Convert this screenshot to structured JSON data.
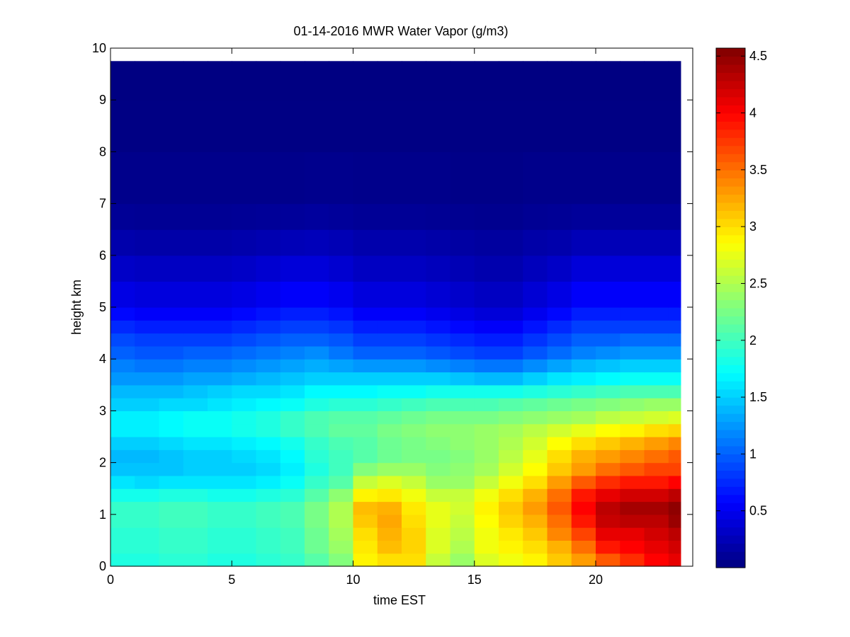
{
  "chart_data": {
    "type": "heatmap",
    "title": "01-14-2016 MWR Water Vapor (g/m3)",
    "xlabel": "time EST",
    "ylabel": "height km",
    "xlim": [
      0,
      24
    ],
    "ylim": [
      0,
      10
    ],
    "x_ticks": [
      0,
      5,
      10,
      15,
      20
    ],
    "y_ticks": [
      0,
      1,
      2,
      3,
      4,
      5,
      6,
      7,
      8,
      9,
      10
    ],
    "colorbar": {
      "colormap": "jet",
      "range": [
        0.0,
        4.57
      ],
      "ticks": [
        0.5,
        1,
        1.5,
        2,
        2.5,
        3,
        3.5,
        4,
        4.5
      ],
      "tick_labels": [
        "0.5",
        "1",
        "1.5",
        "2",
        "2.5",
        "3",
        "3.5",
        "4",
        "4.5"
      ]
    },
    "time_hours": [
      0,
      1,
      2,
      3,
      4,
      5,
      6,
      7,
      8,
      9,
      10,
      11,
      12,
      13,
      14,
      15,
      16,
      17,
      18,
      19,
      20,
      21,
      22,
      23
    ],
    "height_km": [
      0.0,
      0.25,
      0.5,
      0.75,
      1.0,
      1.25,
      1.5,
      1.75,
      2.0,
      2.25,
      2.5,
      2.75,
      3.0,
      3.25,
      3.5,
      3.75,
      4.0,
      4.25,
      4.5,
      4.75,
      5.0,
      5.5,
      6.0,
      6.5,
      7.0,
      8.0,
      9.0
    ],
    "height_top_km": 9.75,
    "values_gm3": [
      [
        1.85,
        1.85,
        1.9,
        1.9,
        1.85,
        1.85,
        1.9,
        1.95,
        2.1,
        2.3,
        2.9,
        3.0,
        3.0,
        2.6,
        2.4,
        2.7,
        2.8,
        2.9,
        3.1,
        3.3,
        3.6,
        3.8,
        4.0,
        4.1
      ],
      [
        1.9,
        1.9,
        1.95,
        1.95,
        1.9,
        1.9,
        1.95,
        2.0,
        2.2,
        2.4,
        2.95,
        3.15,
        3.05,
        2.7,
        2.5,
        2.8,
        2.9,
        3.0,
        3.2,
        3.5,
        3.9,
        4.0,
        4.1,
        4.2
      ],
      [
        1.9,
        1.9,
        1.95,
        1.95,
        1.9,
        1.9,
        1.95,
        2.0,
        2.2,
        2.45,
        3.0,
        3.2,
        3.05,
        2.7,
        2.55,
        2.8,
        2.95,
        3.1,
        3.4,
        3.7,
        4.1,
        4.1,
        4.2,
        4.3
      ],
      [
        1.95,
        1.95,
        2.0,
        2.0,
        1.95,
        1.95,
        2.0,
        2.05,
        2.25,
        2.5,
        3.1,
        3.25,
        3.0,
        2.75,
        2.6,
        2.85,
        3.05,
        3.2,
        3.5,
        3.9,
        4.25,
        4.3,
        4.3,
        4.45
      ],
      [
        1.95,
        1.95,
        2.0,
        2.0,
        1.95,
        1.95,
        2.0,
        2.05,
        2.25,
        2.5,
        3.15,
        3.2,
        2.95,
        2.75,
        2.65,
        2.9,
        3.1,
        3.3,
        3.6,
        4.0,
        4.3,
        4.4,
        4.4,
        4.5
      ],
      [
        1.8,
        1.8,
        1.85,
        1.85,
        1.8,
        1.8,
        1.85,
        1.9,
        2.1,
        2.35,
        2.9,
        2.95,
        2.8,
        2.6,
        2.6,
        2.8,
        3.0,
        3.2,
        3.5,
        3.9,
        4.1,
        4.2,
        4.2,
        4.3
      ],
      [
        1.6,
        1.55,
        1.6,
        1.6,
        1.6,
        1.6,
        1.65,
        1.75,
        1.95,
        2.1,
        2.6,
        2.7,
        2.6,
        2.4,
        2.4,
        2.6,
        2.8,
        3.0,
        3.3,
        3.6,
        3.8,
        3.9,
        3.9,
        4.0
      ],
      [
        1.45,
        1.45,
        1.45,
        1.5,
        1.5,
        1.5,
        1.55,
        1.65,
        1.85,
        2.0,
        2.3,
        2.4,
        2.4,
        2.3,
        2.35,
        2.45,
        2.65,
        2.85,
        3.1,
        3.3,
        3.5,
        3.6,
        3.7,
        3.7
      ],
      [
        1.4,
        1.4,
        1.45,
        1.5,
        1.5,
        1.55,
        1.6,
        1.7,
        1.9,
        2.0,
        2.1,
        2.2,
        2.25,
        2.25,
        2.3,
        2.4,
        2.55,
        2.75,
        3.0,
        3.2,
        3.3,
        3.4,
        3.5,
        3.6
      ],
      [
        1.5,
        1.5,
        1.55,
        1.6,
        1.6,
        1.65,
        1.7,
        1.8,
        1.95,
        2.05,
        2.1,
        2.2,
        2.25,
        2.3,
        2.35,
        2.4,
        2.5,
        2.65,
        2.85,
        3.0,
        3.1,
        3.2,
        3.3,
        3.4
      ],
      [
        1.65,
        1.65,
        1.7,
        1.75,
        1.75,
        1.8,
        1.85,
        1.95,
        2.05,
        2.15,
        2.15,
        2.25,
        2.3,
        2.35,
        2.35,
        2.4,
        2.45,
        2.55,
        2.65,
        2.75,
        2.85,
        2.9,
        3.0,
        3.05
      ],
      [
        1.65,
        1.65,
        1.7,
        1.75,
        1.75,
        1.8,
        1.85,
        1.95,
        2.05,
        2.1,
        2.1,
        2.15,
        2.2,
        2.25,
        2.25,
        2.25,
        2.3,
        2.35,
        2.4,
        2.45,
        2.55,
        2.6,
        2.65,
        2.7
      ],
      [
        1.5,
        1.5,
        1.55,
        1.55,
        1.6,
        1.65,
        1.7,
        1.75,
        1.85,
        1.9,
        1.9,
        1.95,
        2.0,
        2.05,
        2.05,
        2.05,
        2.1,
        2.15,
        2.2,
        2.25,
        2.3,
        2.35,
        2.4,
        2.4
      ],
      [
        1.4,
        1.4,
        1.4,
        1.45,
        1.5,
        1.55,
        1.55,
        1.6,
        1.7,
        1.7,
        1.7,
        1.75,
        1.75,
        1.8,
        1.8,
        1.8,
        1.8,
        1.85,
        1.9,
        1.95,
        2.0,
        2.05,
        2.05,
        2.05
      ],
      [
        1.25,
        1.25,
        1.25,
        1.3,
        1.3,
        1.35,
        1.4,
        1.45,
        1.5,
        1.5,
        1.5,
        1.5,
        1.5,
        1.5,
        1.45,
        1.4,
        1.4,
        1.5,
        1.6,
        1.65,
        1.7,
        1.75,
        1.75,
        1.75
      ],
      [
        1.15,
        1.1,
        1.1,
        1.15,
        1.15,
        1.2,
        1.25,
        1.3,
        1.35,
        1.3,
        1.25,
        1.25,
        1.25,
        1.2,
        1.15,
        1.1,
        1.1,
        1.2,
        1.3,
        1.4,
        1.45,
        1.5,
        1.5,
        1.5
      ],
      [
        1.0,
        0.95,
        0.95,
        1.0,
        1.0,
        1.05,
        1.1,
        1.15,
        1.2,
        1.1,
        1.0,
        1.0,
        1.0,
        0.95,
        0.9,
        0.85,
        0.85,
        0.95,
        1.05,
        1.15,
        1.2,
        1.25,
        1.25,
        1.25
      ],
      [
        0.9,
        0.85,
        0.85,
        0.85,
        0.85,
        0.9,
        0.95,
        1.0,
        1.0,
        0.95,
        0.85,
        0.85,
        0.85,
        0.8,
        0.75,
        0.7,
        0.7,
        0.8,
        0.9,
        1.0,
        1.0,
        1.05,
        1.05,
        1.05
      ],
      [
        0.75,
        0.7,
        0.7,
        0.7,
        0.7,
        0.75,
        0.8,
        0.85,
        0.85,
        0.8,
        0.7,
        0.7,
        0.7,
        0.65,
        0.6,
        0.55,
        0.55,
        0.65,
        0.75,
        0.85,
        0.85,
        0.85,
        0.85,
        0.85
      ],
      [
        0.6,
        0.55,
        0.55,
        0.55,
        0.55,
        0.6,
        0.65,
        0.7,
        0.7,
        0.65,
        0.55,
        0.55,
        0.55,
        0.5,
        0.45,
        0.4,
        0.4,
        0.5,
        0.6,
        0.7,
        0.7,
        0.7,
        0.7,
        0.7
      ],
      [
        0.45,
        0.42,
        0.42,
        0.42,
        0.42,
        0.45,
        0.5,
        0.55,
        0.55,
        0.5,
        0.42,
        0.42,
        0.42,
        0.38,
        0.34,
        0.3,
        0.3,
        0.38,
        0.45,
        0.55,
        0.55,
        0.55,
        0.55,
        0.55
      ],
      [
        0.32,
        0.3,
        0.3,
        0.3,
        0.3,
        0.32,
        0.36,
        0.4,
        0.4,
        0.36,
        0.3,
        0.3,
        0.3,
        0.27,
        0.24,
        0.21,
        0.21,
        0.27,
        0.32,
        0.4,
        0.4,
        0.4,
        0.4,
        0.4
      ],
      [
        0.2,
        0.18,
        0.18,
        0.18,
        0.18,
        0.2,
        0.22,
        0.25,
        0.26,
        0.24,
        0.2,
        0.2,
        0.2,
        0.18,
        0.16,
        0.14,
        0.14,
        0.18,
        0.2,
        0.25,
        0.25,
        0.25,
        0.25,
        0.25
      ],
      [
        0.1,
        0.09,
        0.09,
        0.09,
        0.09,
        0.1,
        0.11,
        0.12,
        0.13,
        0.12,
        0.1,
        0.1,
        0.1,
        0.09,
        0.08,
        0.07,
        0.07,
        0.09,
        0.1,
        0.12,
        0.12,
        0.12,
        0.12,
        0.12
      ],
      [
        0.05,
        0.05,
        0.05,
        0.05,
        0.05,
        0.05,
        0.05,
        0.05,
        0.06,
        0.06,
        0.05,
        0.05,
        0.05,
        0.05,
        0.04,
        0.04,
        0.04,
        0.05,
        0.05,
        0.05,
        0.05,
        0.05,
        0.05,
        0.05
      ],
      [
        0.02,
        0.02,
        0.02,
        0.02,
        0.02,
        0.02,
        0.02,
        0.02,
        0.02,
        0.02,
        0.02,
        0.02,
        0.02,
        0.02,
        0.02,
        0.02,
        0.02,
        0.02,
        0.02,
        0.02,
        0.02,
        0.02,
        0.02,
        0.02
      ],
      [
        0.01,
        0.01,
        0.01,
        0.01,
        0.01,
        0.01,
        0.01,
        0.01,
        0.01,
        0.01,
        0.01,
        0.01,
        0.01,
        0.01,
        0.01,
        0.01,
        0.01,
        0.01,
        0.01,
        0.01,
        0.01,
        0.01,
        0.01,
        0.01
      ]
    ]
  }
}
